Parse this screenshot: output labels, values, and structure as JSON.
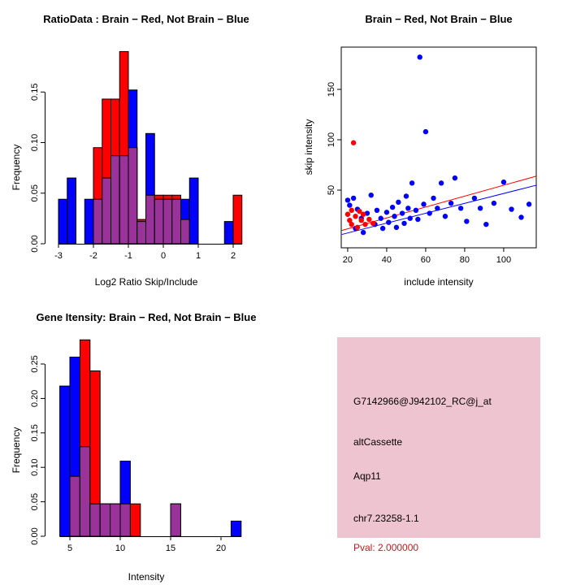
{
  "figure": {
    "background": "#ffffff"
  },
  "colors": {
    "brain": "#FF0000",
    "not_brain": "#0000FF",
    "overlap": "#993399",
    "pval_text": "#B22222",
    "info_background": "#EFC4D1"
  },
  "chart_data": [
    {
      "id": "ratio_hist",
      "type": "bar",
      "title": "RatioData : Brain − Red, Not Brain − Blue",
      "xlabel": "Log2 Ratio Skip/Include",
      "ylabel": "Frequency",
      "xlim": [
        -3.1,
        2.3
      ],
      "ylim": [
        0,
        0.19
      ],
      "xticks": [
        -3,
        -2,
        -1,
        0,
        1,
        2
      ],
      "yticks": [
        0,
        0.05,
        0.1,
        0.15
      ],
      "ytick_decimals": 2,
      "bin_width": 0.25,
      "series_colors": {
        "red": "#FF0000",
        "blue": "#0000FF",
        "overlap": "#993399"
      },
      "legend": {
        "red": "Brain",
        "blue": "Not Brain"
      },
      "bins": [
        {
          "x": -3.0,
          "red": 0,
          "blue": 0.044
        },
        {
          "x": -2.75,
          "red": 0,
          "blue": 0.065
        },
        {
          "x": -2.25,
          "red": 0,
          "blue": 0.044
        },
        {
          "x": -2.0,
          "red": 0.095,
          "blue": 0.044
        },
        {
          "x": -1.75,
          "red": 0.143,
          "blue": 0.065
        },
        {
          "x": -1.5,
          "red": 0.143,
          "blue": 0.087
        },
        {
          "x": -1.25,
          "red": 0.19,
          "blue": 0.087
        },
        {
          "x": -1.0,
          "red": 0.095,
          "blue": 0.152
        },
        {
          "x": -0.75,
          "red": 0.024,
          "blue": 0.022
        },
        {
          "x": -0.5,
          "red": 0.048,
          "blue": 0.109
        },
        {
          "x": -0.25,
          "red": 0.048,
          "blue": 0.044
        },
        {
          "x": 0.0,
          "red": 0.048,
          "blue": 0.044
        },
        {
          "x": 0.25,
          "red": 0.048,
          "blue": 0.044
        },
        {
          "x": 0.5,
          "red": 0.024,
          "blue": 0.044
        },
        {
          "x": 0.75,
          "red": 0,
          "blue": 0.065
        },
        {
          "x": 1.75,
          "red": 0,
          "blue": 0.022
        },
        {
          "x": 2.0,
          "red": 0.048,
          "blue": 0
        }
      ]
    },
    {
      "id": "intensity_scatter",
      "type": "scatter",
      "title": "Brain − Red, Not Brain − Blue",
      "xlabel": "include intensity",
      "ylabel": "skip intensity",
      "xlim": [
        17,
        117
      ],
      "ylim": [
        0,
        192
      ],
      "xticks": [
        20,
        40,
        60,
        80,
        100
      ],
      "yticks": [
        50,
        100,
        150
      ],
      "series": [
        {
          "name": "Not Brain",
          "color": "#0000FF",
          "points": [
            [
              20,
              40
            ],
            [
              21,
              35
            ],
            [
              23,
              42
            ],
            [
              24,
              12
            ],
            [
              25,
              31
            ],
            [
              27,
              22
            ],
            [
              28,
              8
            ],
            [
              30,
              27
            ],
            [
              32,
              45
            ],
            [
              34,
              16
            ],
            [
              35,
              30
            ],
            [
              37,
              22
            ],
            [
              38,
              12
            ],
            [
              40,
              28
            ],
            [
              41,
              18
            ],
            [
              43,
              33
            ],
            [
              44,
              24
            ],
            [
              45,
              13
            ],
            [
              46,
              38
            ],
            [
              48,
              27
            ],
            [
              49,
              17
            ],
            [
              50,
              44
            ],
            [
              51,
              32
            ],
            [
              52,
              22
            ],
            [
              53,
              57
            ],
            [
              55,
              30
            ],
            [
              56,
              21
            ],
            [
              57,
              182
            ],
            [
              59,
              36
            ],
            [
              60,
              108
            ],
            [
              62,
              27
            ],
            [
              64,
              42
            ],
            [
              66,
              32
            ],
            [
              68,
              57
            ],
            [
              70,
              24
            ],
            [
              73,
              37
            ],
            [
              75,
              62
            ],
            [
              78,
              32
            ],
            [
              81,
              19
            ],
            [
              85,
              42
            ],
            [
              88,
              32
            ],
            [
              91,
              16
            ],
            [
              95,
              37
            ],
            [
              100,
              58
            ],
            [
              104,
              31
            ],
            [
              109,
              23
            ],
            [
              113,
              36
            ]
          ]
        },
        {
          "name": "Brain",
          "color": "#FF0000",
          "points": [
            [
              20,
              26
            ],
            [
              21,
              20
            ],
            [
              22,
              16
            ],
            [
              22,
              30
            ],
            [
              23,
              97
            ],
            [
              24,
              24
            ],
            [
              25,
              13
            ],
            [
              26,
              29
            ],
            [
              27,
              20
            ],
            [
              28,
              26
            ],
            [
              29,
              16
            ],
            [
              31,
              21
            ],
            [
              33,
              17
            ]
          ]
        }
      ],
      "fit_lines": [
        {
          "name": "Brain fit",
          "color": "#FF0000",
          "from": [
            17,
            10
          ],
          "to": [
            117,
            64
          ]
        },
        {
          "name": "Not Brain fit",
          "color": "#0000FF",
          "from": [
            17,
            6
          ],
          "to": [
            117,
            55
          ]
        }
      ]
    },
    {
      "id": "gene_hist",
      "type": "bar",
      "title": "Gene Itensity: Brain − Red, Not Brain − Blue",
      "xlabel": "Intensity",
      "ylabel": "Frequency",
      "xlim": [
        4,
        22
      ],
      "ylim": [
        0,
        0.29
      ],
      "xticks": [
        5,
        10,
        15,
        20
      ],
      "yticks": [
        0,
        0.05,
        0.1,
        0.15,
        0.2,
        0.25
      ],
      "ytick_decimals": 2,
      "bin_width": 1,
      "series_colors": {
        "red": "#FF0000",
        "blue": "#0000FF",
        "overlap": "#993399"
      },
      "legend": {
        "red": "Brain",
        "blue": "Not Brain"
      },
      "bins": [
        {
          "x": 4,
          "red": 0,
          "blue": 0.218
        },
        {
          "x": 5,
          "red": 0.087,
          "blue": 0.26
        },
        {
          "x": 6,
          "red": 0.285,
          "blue": 0.13
        },
        {
          "x": 7,
          "red": 0.24,
          "blue": 0.047
        },
        {
          "x": 8,
          "red": 0.047,
          "blue": 0.047
        },
        {
          "x": 9,
          "red": 0.047,
          "blue": 0.047
        },
        {
          "x": 10,
          "red": 0.047,
          "blue": 0.109
        },
        {
          "x": 11,
          "red": 0.047,
          "blue": 0
        },
        {
          "x": 15,
          "red": 0.047,
          "blue": 0.047
        },
        {
          "x": 21,
          "red": 0,
          "blue": 0.022
        }
      ]
    }
  ],
  "info_panel": {
    "background": "#EFC4D1",
    "lines": [
      {
        "text": "G7142966@J942102_RC@j_at",
        "color": "#000000"
      },
      {
        "text": "altCassette",
        "color": "#000000"
      },
      {
        "text": "Aqp11",
        "color": "#000000"
      },
      {
        "text": "chr7.23258-1.1",
        "color": "#000000"
      },
      {
        "text": "Pval: 2.000000",
        "color": "#B22222"
      }
    ]
  }
}
